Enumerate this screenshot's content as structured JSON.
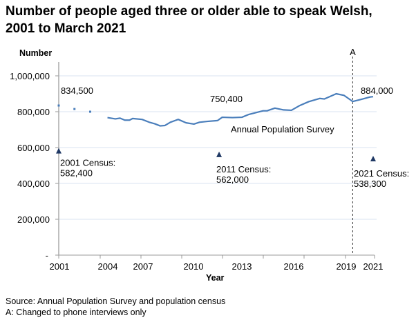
{
  "title_line1": "Number of people aged three or older able to speak Welsh,",
  "title_line2": "2001 to March 2021",
  "footnotes": {
    "source": "Source: Annual Population Survey and population census",
    "note_a": "A: Changed to phone interviews only"
  },
  "chart_data": {
    "type": "line",
    "ylabel": "Number",
    "xlabel": "Year",
    "ylim": [
      0,
      1000000
    ],
    "y_ticks": [
      {
        "value": 0,
        "label": "-"
      },
      {
        "value": 200000,
        "label": "200,000"
      },
      {
        "value": 400000,
        "label": "400,000"
      },
      {
        "value": 600000,
        "label": "600,000"
      },
      {
        "value": 800000,
        "label": "800,000"
      },
      {
        "value": 1000000,
        "label": "1,000,000"
      }
    ],
    "x_tick_labels": [
      "2001",
      "2004",
      "2007",
      "2010",
      "2013",
      "2016",
      "2019",
      "2021"
    ],
    "grid": "horizontal",
    "colors": {
      "aps": "#4a7ebb",
      "census": "#1f3864",
      "grid": "#d9e3f0"
    },
    "aps_early_points": [
      {
        "x": 2001.0,
        "y": 834500
      },
      {
        "x": 2002.0,
        "y": 815000
      },
      {
        "x": 2003.0,
        "y": 800000
      }
    ],
    "aps_series": {
      "name": "Annual Population Survey",
      "points": [
        [
          2004.1,
          767000
        ],
        [
          2004.6,
          760000
        ],
        [
          2004.9,
          764000
        ],
        [
          2005.2,
          753000
        ],
        [
          2005.5,
          753000
        ],
        [
          2005.7,
          762000
        ],
        [
          2006.3,
          757000
        ],
        [
          2006.8,
          740000
        ],
        [
          2007.1,
          733000
        ],
        [
          2007.45,
          721000
        ],
        [
          2007.75,
          723000
        ],
        [
          2008.1,
          741000
        ],
        [
          2008.6,
          757000
        ],
        [
          2009.1,
          738000
        ],
        [
          2009.6,
          731000
        ],
        [
          2009.95,
          741000
        ],
        [
          2010.45,
          746000
        ],
        [
          2011.1,
          750400
        ],
        [
          2011.4,
          769000
        ],
        [
          2012.05,
          767000
        ],
        [
          2012.65,
          769000
        ],
        [
          2013.1,
          785000
        ],
        [
          2014.0,
          805000
        ],
        [
          2014.25,
          805000
        ],
        [
          2014.75,
          820000
        ],
        [
          2015.3,
          810000
        ],
        [
          2015.8,
          808000
        ],
        [
          2016.3,
          833000
        ],
        [
          2016.9,
          856000
        ],
        [
          2017.6,
          874000
        ],
        [
          2017.9,
          871000
        ],
        [
          2018.65,
          900000
        ],
        [
          2019.15,
          891000
        ],
        [
          2019.7,
          857000
        ],
        [
          2020.25,
          869000
        ],
        [
          2020.8,
          882000
        ],
        [
          2021.0,
          884000
        ]
      ]
    },
    "census_points": [
      {
        "x": 2001.0,
        "y": 582400,
        "label1": "2001 Census:",
        "label2": "582,400"
      },
      {
        "x": 2011.2,
        "y": 562000,
        "label1": "2011 Census:",
        "label2": "562,000"
      },
      {
        "x": 2021.0,
        "y": 538300,
        "label1": "2021 Census:",
        "label2": "538,300"
      }
    ],
    "annotations": [
      {
        "text": "834,500",
        "x": 2001.0,
        "y": 834500
      },
      {
        "text": "750,400",
        "x": 2011.1,
        "y": 750400
      },
      {
        "text": "884,000",
        "x": 2021.0,
        "y": 884000
      },
      {
        "text": "Annual Population Survey"
      }
    ],
    "reference_line": {
      "x": 2019.7,
      "label": "A"
    }
  }
}
